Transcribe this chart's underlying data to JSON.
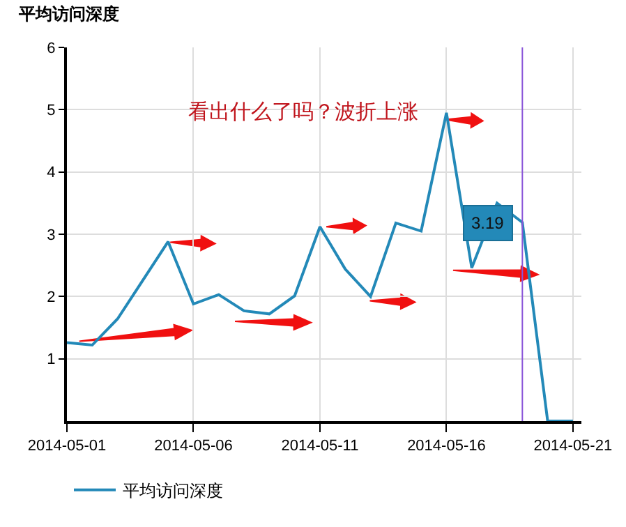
{
  "chart_data": {
    "type": "line",
    "title": "平均访问深度",
    "x": [
      "2014-05-01",
      "2014-05-02",
      "2014-05-03",
      "2014-05-04",
      "2014-05-05",
      "2014-05-06",
      "2014-05-07",
      "2014-05-08",
      "2014-05-09",
      "2014-05-10",
      "2014-05-11",
      "2014-05-12",
      "2014-05-13",
      "2014-05-14",
      "2014-05-15",
      "2014-05-16",
      "2014-05-17",
      "2014-05-18",
      "2014-05-19",
      "2014-05-20",
      "2014-05-21"
    ],
    "series": [
      {
        "name": "平均访问深度",
        "color": "#2389b8",
        "values": [
          1.26,
          1.22,
          1.64,
          2.26,
          2.88,
          1.88,
          2.03,
          1.77,
          1.72,
          2.01,
          3.12,
          2.44,
          2.0,
          3.18,
          3.05,
          4.95,
          2.46,
          3.5,
          3.19,
          0,
          0
        ]
      }
    ],
    "xlim": [
      "2014-05-01",
      "2014-05-21T08:00"
    ],
    "xticks": [
      "2014-05-01",
      "2014-05-06",
      "2014-05-11",
      "2014-05-16",
      "2014-05-21"
    ],
    "ylim": [
      0,
      6
    ],
    "yticks": [
      1,
      2,
      3,
      4,
      5,
      6
    ],
    "grid": true,
    "legend": "bottom left",
    "marker": "none",
    "line_style": "solid",
    "ref_lines": [
      {
        "axis": "x",
        "value": "2014-05-19",
        "color": "#8a55d8"
      }
    ],
    "annotations": [
      "看出什么了吗？波折上涨",
      {
        "text": "3.19",
        "x": "2014-05-19",
        "y": 3.19
      }
    ]
  }
}
